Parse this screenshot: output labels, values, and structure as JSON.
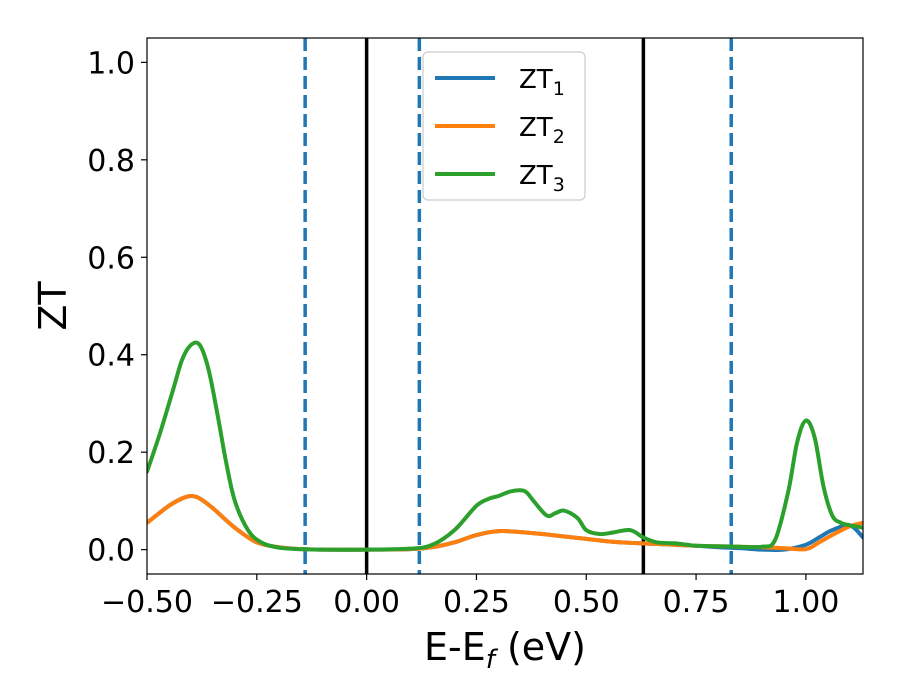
{
  "chart_data": {
    "type": "line",
    "title": "",
    "xlabel": "E-E_f (eV)",
    "ylabel": "ZT",
    "xlim": [
      -0.5,
      1.13
    ],
    "ylim": [
      -0.05,
      1.05
    ],
    "x_ticks": [
      -0.5,
      -0.25,
      0.0,
      0.25,
      0.5,
      0.75,
      1.0
    ],
    "x_tick_labels": [
      "−0.50",
      "−0.25",
      "0.00",
      "0.25",
      "0.50",
      "0.75",
      "1.00"
    ],
    "y_ticks": [
      0.0,
      0.2,
      0.4,
      0.6,
      0.8,
      1.0
    ],
    "y_tick_labels": [
      "0.0",
      "0.2",
      "0.4",
      "0.6",
      "0.8",
      "1.0"
    ],
    "grid": false,
    "legend_position": "top-center",
    "series": [
      {
        "name": "ZT_1",
        "label_main": "ZT",
        "label_sub": "1",
        "color": "#1f77b4",
        "x": [
          -0.5,
          -0.45,
          -0.42,
          -0.4,
          -0.38,
          -0.35,
          -0.3,
          -0.25,
          -0.2,
          -0.15,
          -0.1,
          0.0,
          0.1,
          0.15,
          0.2,
          0.25,
          0.3,
          0.35,
          0.4,
          0.45,
          0.5,
          0.55,
          0.6,
          0.65,
          0.7,
          0.75,
          0.8,
          0.85,
          0.9,
          0.95,
          1.0,
          1.03,
          1.06,
          1.1,
          1.13
        ],
        "y": [
          0.055,
          0.09,
          0.105,
          0.11,
          0.105,
          0.085,
          0.045,
          0.015,
          0.005,
          0.001,
          0.0,
          0.0,
          0.001,
          0.005,
          0.015,
          0.03,
          0.038,
          0.036,
          0.032,
          0.027,
          0.022,
          0.017,
          0.014,
          0.012,
          0.01,
          0.008,
          0.005,
          0.003,
          0.0,
          0.0,
          0.01,
          0.025,
          0.04,
          0.05,
          0.025
        ]
      },
      {
        "name": "ZT_2",
        "label_main": "ZT",
        "label_sub": "2",
        "color": "#ff7f0e",
        "x": [
          -0.5,
          -0.45,
          -0.42,
          -0.4,
          -0.38,
          -0.35,
          -0.3,
          -0.25,
          -0.2,
          -0.15,
          -0.1,
          0.0,
          0.1,
          0.15,
          0.2,
          0.25,
          0.3,
          0.35,
          0.4,
          0.45,
          0.5,
          0.55,
          0.6,
          0.65,
          0.7,
          0.75,
          0.8,
          0.85,
          0.9,
          0.95,
          1.0,
          1.03,
          1.06,
          1.1,
          1.13
        ],
        "y": [
          0.055,
          0.09,
          0.105,
          0.11,
          0.105,
          0.085,
          0.045,
          0.015,
          0.005,
          0.001,
          0.0,
          0.0,
          0.001,
          0.005,
          0.015,
          0.03,
          0.038,
          0.036,
          0.032,
          0.027,
          0.022,
          0.017,
          0.014,
          0.012,
          0.01,
          0.008,
          0.007,
          0.006,
          0.005,
          0.003,
          0.001,
          0.015,
          0.03,
          0.048,
          0.055
        ]
      },
      {
        "name": "ZT_3",
        "label_main": "ZT",
        "label_sub": "3",
        "color": "#2ca02c",
        "x": [
          -0.5,
          -0.47,
          -0.44,
          -0.42,
          -0.4,
          -0.38,
          -0.36,
          -0.34,
          -0.32,
          -0.3,
          -0.27,
          -0.24,
          -0.2,
          -0.15,
          -0.1,
          0.0,
          0.1,
          0.15,
          0.2,
          0.25,
          0.28,
          0.3,
          0.33,
          0.36,
          0.38,
          0.41,
          0.43,
          0.45,
          0.48,
          0.5,
          0.53,
          0.56,
          0.6,
          0.63,
          0.66,
          0.7,
          0.73,
          0.75,
          0.8,
          0.85,
          0.9,
          0.93,
          0.96,
          0.98,
          1.0,
          1.02,
          1.04,
          1.06,
          1.08,
          1.1,
          1.13
        ],
        "y": [
          0.16,
          0.24,
          0.33,
          0.39,
          0.42,
          0.42,
          0.37,
          0.28,
          0.18,
          0.1,
          0.04,
          0.015,
          0.004,
          0.001,
          0.0,
          0.0,
          0.002,
          0.01,
          0.04,
          0.09,
          0.105,
          0.11,
          0.12,
          0.12,
          0.1,
          0.07,
          0.075,
          0.08,
          0.065,
          0.04,
          0.032,
          0.035,
          0.04,
          0.025,
          0.015,
          0.013,
          0.01,
          0.008,
          0.007,
          0.006,
          0.006,
          0.02,
          0.12,
          0.22,
          0.265,
          0.23,
          0.13,
          0.07,
          0.055,
          0.05,
          0.045
        ]
      }
    ],
    "vlines": [
      {
        "x": -0.14,
        "style": "dashed",
        "color": "#1f77b4"
      },
      {
        "x": 0.0,
        "style": "solid",
        "color": "#000000"
      },
      {
        "x": 0.12,
        "style": "dashed",
        "color": "#1f77b4"
      },
      {
        "x": 0.63,
        "style": "solid",
        "color": "#000000"
      },
      {
        "x": 0.83,
        "style": "dashed",
        "color": "#1f77b4"
      }
    ]
  }
}
